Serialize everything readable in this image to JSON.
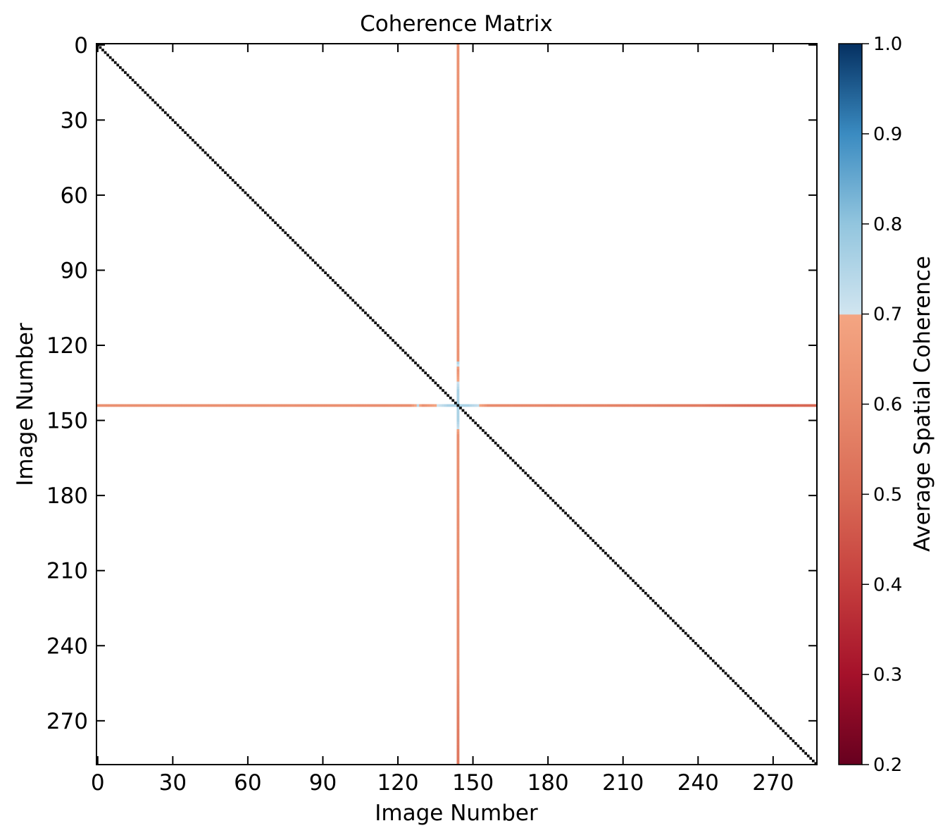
{
  "chart_data": {
    "type": "heatmap",
    "title": "Coherence Matrix",
    "xlabel": "Image Number",
    "ylabel": "Image Number",
    "n_images": 288,
    "xlim": [
      0,
      288
    ],
    "ylim": [
      288,
      0
    ],
    "x_ticks": [
      "0",
      "30",
      "60",
      "90",
      "120",
      "150",
      "180",
      "210",
      "240",
      "270"
    ],
    "y_ticks": [
      "0",
      "30",
      "60",
      "90",
      "120",
      "150",
      "180",
      "210",
      "240",
      "270"
    ],
    "diagonal_value": 1.0,
    "highlighted_row_index": 144,
    "highlighted_col_index": 144,
    "row_coherence_profile": [
      {
        "x": 0,
        "value": 0.62
      },
      {
        "x": 60,
        "value": 0.62
      },
      {
        "x": 125,
        "value": 0.61
      },
      {
        "x": 128,
        "value": 0.74
      },
      {
        "x": 130,
        "value": 0.62
      },
      {
        "x": 140,
        "value": 0.76
      },
      {
        "x": 148,
        "value": 0.76
      },
      {
        "x": 152,
        "value": 0.72
      },
      {
        "x": 156,
        "value": 0.6
      },
      {
        "x": 200,
        "value": 0.58
      },
      {
        "x": 240,
        "value": 0.55
      },
      {
        "x": 260,
        "value": 0.5
      },
      {
        "x": 288,
        "value": 0.49
      }
    ],
    "col_coherence_profile": [
      {
        "y": 0,
        "value": 0.63
      },
      {
        "y": 126,
        "value": 0.63
      },
      {
        "y": 127,
        "value": 0.75
      },
      {
        "y": 130,
        "value": 0.63
      },
      {
        "y": 138,
        "value": 0.76
      },
      {
        "y": 150,
        "value": 0.76
      },
      {
        "y": 153,
        "value": 0.72
      },
      {
        "y": 156,
        "value": 0.62
      },
      {
        "y": 250,
        "value": 0.6
      },
      {
        "y": 270,
        "value": 0.56
      },
      {
        "y": 288,
        "value": 0.54
      }
    ],
    "colorbar": {
      "label": "Average Spatial Coherence",
      "min": 0.2,
      "max": 1.0,
      "ticks": [
        "0.2",
        "0.3",
        "0.4",
        "0.5",
        "0.6",
        "0.7",
        "0.8",
        "0.9",
        "1.0"
      ],
      "colormap": "RdBu",
      "masked_range": [
        0.0,
        0.2
      ],
      "stops": [
        {
          "value": 0.2,
          "color": "#67001f"
        },
        {
          "value": 0.3,
          "color": "#a5112a"
        },
        {
          "value": 0.4,
          "color": "#c53e3d"
        },
        {
          "value": 0.5,
          "color": "#d96a55"
        },
        {
          "value": 0.6,
          "color": "#e88b6d"
        },
        {
          "value": 0.699,
          "color": "#f4a582"
        },
        {
          "value": 0.7,
          "color": "#d1e5f0"
        },
        {
          "value": 0.8,
          "color": "#92c5de"
        },
        {
          "value": 0.9,
          "color": "#3a8bc1"
        },
        {
          "value": 1.0,
          "color": "#053061"
        }
      ]
    },
    "grid": false
  }
}
